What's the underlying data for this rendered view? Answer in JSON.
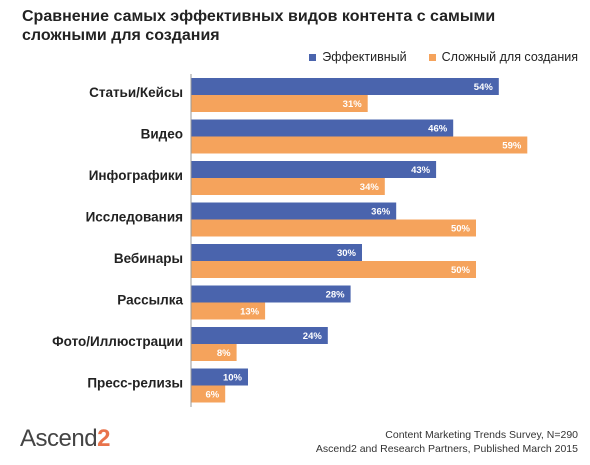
{
  "chart_data": {
    "type": "bar",
    "orientation": "horizontal",
    "title": "Сравнение самых эффективных видов контента с самыми сложными для создания",
    "categories": [
      "Статьи/Кейсы",
      "Видео",
      "Инфографики",
      "Исследования",
      "Вебинары",
      "Рассылка",
      "Фото/Иллюстрации",
      "Пресс-релизы"
    ],
    "series": [
      {
        "name": "Эффективный",
        "values": [
          54,
          46,
          43,
          36,
          30,
          28,
          24,
          10
        ],
        "color": "#4a64ad",
        "labels": [
          "54%",
          "46%",
          "43%",
          "36%",
          "30%",
          "28%",
          "24%",
          "10%"
        ]
      },
      {
        "name": "Сложный для создания",
        "values": [
          31,
          59,
          34,
          50,
          50,
          13,
          8,
          6
        ],
        "color": "#f5a35c",
        "labels": [
          "31%",
          "59%",
          "34%",
          "50%",
          "50%",
          "13%",
          "8%",
          "6%"
        ]
      }
    ],
    "value_unit": "%",
    "xlim": [
      0,
      60
    ],
    "grid": false,
    "legend_position": "top-right"
  },
  "logo": {
    "name": "Ascend",
    "suffix": "2"
  },
  "source": {
    "line1": "Content Marketing Trends Survey, N=290",
    "line2": "Ascend2 and Research Partners, Published March 2015"
  }
}
